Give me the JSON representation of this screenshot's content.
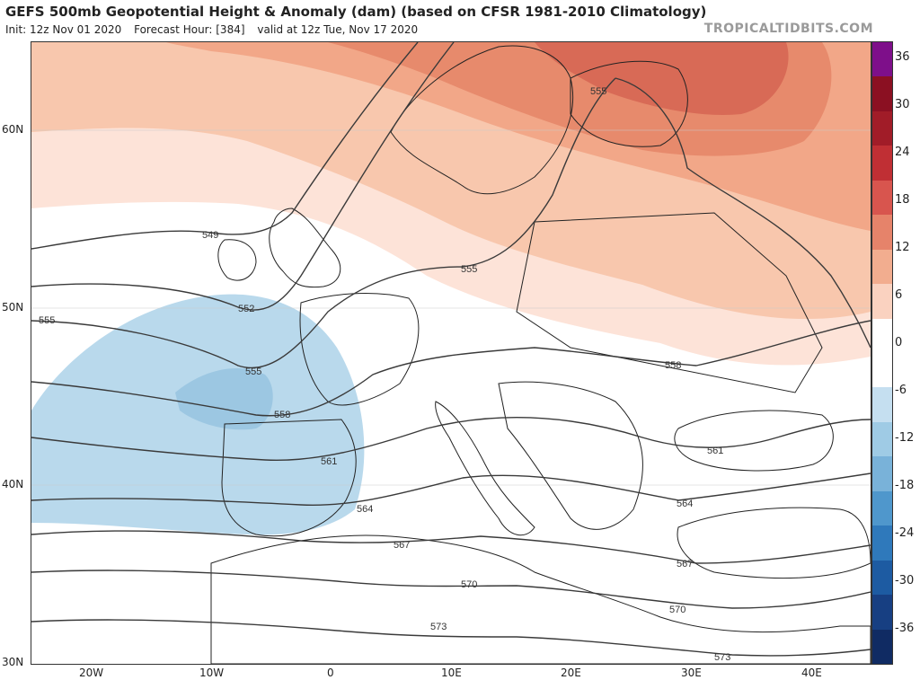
{
  "header": {
    "title": "GEFS 500mb Geopotential Height & Anomaly (dam) (based on CFSR 1981-2010 Climatology)",
    "init": "Init: 12z Nov 01 2020",
    "forecast_hour": "Forecast Hour: [384]",
    "valid": "valid at 12z Tue, Nov 17 2020",
    "logo": "TROPICALTIDBITS.COM"
  },
  "map": {
    "lat_labels": [
      "60N",
      "50N",
      "40N",
      "30N"
    ],
    "lon_labels": [
      "20W",
      "10W",
      "0",
      "10E",
      "20E",
      "30E",
      "40E"
    ],
    "contour_labels": [
      "549",
      "552",
      "555",
      "555",
      "555",
      "558",
      "558",
      "561",
      "561",
      "564",
      "564",
      "567",
      "567",
      "570",
      "570",
      "573",
      "573",
      "555"
    ],
    "colors": {
      "pos_6": "#fde3d8",
      "pos_12": "#f7c3a8",
      "pos_18": "#f0a282",
      "pos_24": "#e27a5c",
      "pos_30": "#d3554a",
      "neg_6": "#b6d7ea",
      "neg_12": "#94c2de"
    }
  },
  "colorbar": {
    "labels": [
      "36",
      "30",
      "24",
      "18",
      "12",
      "6",
      "0",
      "-6",
      "-12",
      "-18",
      "-24",
      "-30",
      "-36"
    ],
    "colors": [
      "#7e0f8a",
      "#8b1022",
      "#a11c28",
      "#c02f34",
      "#d8554e",
      "#e6836a",
      "#f2ad8f",
      "#fad2c0",
      "#ffffff",
      "#ffffff",
      "#c5dff0",
      "#9fcbe5",
      "#79b2d9",
      "#4f97cc",
      "#2f79bb",
      "#1d5ba2",
      "#173f82",
      "#102b63"
    ]
  }
}
